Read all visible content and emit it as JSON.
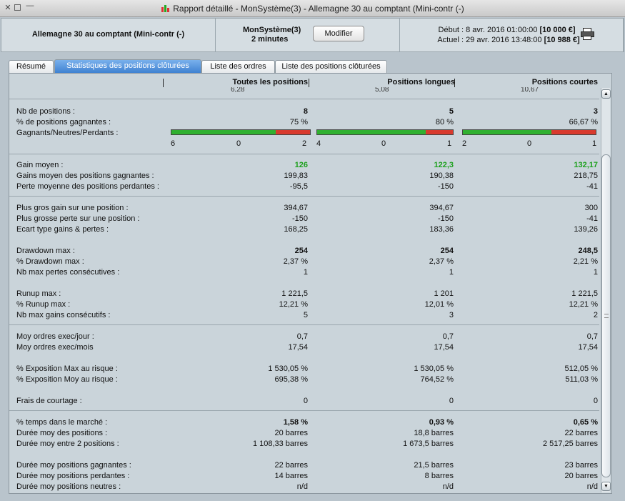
{
  "window": {
    "title": "Rapport détaillé - MonSystème(3) - Allemagne 30 au comptant (Mini-contr (-)",
    "controls": {
      "close": "✕",
      "max": "",
      "min": "—"
    }
  },
  "header": {
    "instrument": "Allemagne 30 au comptant (Mini-contr (-)",
    "system_name": "MonSystème(3)",
    "timeframe": "2 minutes",
    "modify_label": "Modifier",
    "start_label": "Début :",
    "start_date": "8 avr. 2016 01:00:00",
    "start_capital": "[10 000 €]",
    "current_label": "Actuel :",
    "current_date": "29 avr. 2016 13:48:00",
    "current_capital": "[10 988 €]",
    "print_icon": "printer-icon"
  },
  "tabs": [
    {
      "label": "Résumé"
    },
    {
      "label": "Statistiques des positions clôturées"
    },
    {
      "label": "Liste des ordres"
    },
    {
      "label": "Liste des positions clôturées"
    }
  ],
  "columns": {
    "all": "Toutes les positions",
    "long": "Positions longues",
    "short": "Positions courtes",
    "ghost_all": "6,28",
    "ghost_long": "5,08",
    "ghost_short": "10,67"
  },
  "stats": {
    "nb_positions": {
      "label": "Nb de positions :",
      "all": "8",
      "long": "5",
      "short": "3"
    },
    "pct_winning": {
      "label": "% de positions gagnantes :",
      "all": "75 %",
      "long": "80 %",
      "short": "66,67 %"
    },
    "gnp": {
      "label": "Gagnants/Neutres/Perdants :",
      "all": {
        "w": "6",
        "n": "0",
        "l": "2",
        "win_fraction": 0.75
      },
      "long": {
        "w": "4",
        "n": "0",
        "l": "1",
        "win_fraction": 0.8
      },
      "short": {
        "w": "2",
        "n": "0",
        "l": "1",
        "win_fraction": 0.6667
      }
    },
    "avg_gain": {
      "label": "Gain moyen :",
      "all": "126",
      "long": "122,3",
      "short": "132,17"
    },
    "avg_gain_win": {
      "label": "Gains moyen des positions gagnantes :",
      "all": "199,83",
      "long": "190,38",
      "short": "218,75"
    },
    "avg_loss": {
      "label": "Perte moyenne des positions perdantes :",
      "all": "-95,5",
      "long": "-150",
      "short": "-41"
    },
    "max_gain": {
      "label": "Plus gros gain sur une position :",
      "all": "394,67",
      "long": "394,67",
      "short": "300"
    },
    "max_loss": {
      "label": "Plus grosse perte sur une position :",
      "all": "-150",
      "long": "-150",
      "short": "-41"
    },
    "stddev": {
      "label": "Ecart type gains & pertes :",
      "all": "168,25",
      "long": "183,36",
      "short": "139,26"
    },
    "dd_max": {
      "label": "Drawdown max :",
      "all": "254",
      "long": "254",
      "short": "248,5"
    },
    "dd_pct": {
      "label": "% Drawdown max :",
      "all": "2,37 %",
      "long": "2,37 %",
      "short": "2,21 %"
    },
    "max_cons_loss": {
      "label": "Nb max pertes consécutives :",
      "all": "1",
      "long": "1",
      "short": "1"
    },
    "runup_max": {
      "label": "Runup max :",
      "all": "1 221,5",
      "long": "1 201",
      "short": "1 221,5"
    },
    "runup_pct": {
      "label": "% Runup max :",
      "all": "12,21 %",
      "long": "12,01 %",
      "short": "12,21 %"
    },
    "max_cons_gain": {
      "label": "Nb max gains consécutifs :",
      "all": "5",
      "long": "3",
      "short": "2"
    },
    "orders_day": {
      "label": "Moy ordres exec/jour :",
      "all": "0,7",
      "long": "0,7",
      "short": "0,7"
    },
    "orders_month": {
      "label": "Moy ordres exec/mois",
      "all": "17,54",
      "long": "17,54",
      "short": "17,54"
    },
    "exp_max": {
      "label": "% Exposition Max au risque :",
      "all": "1 530,05 %",
      "long": "1 530,05 %",
      "short": "512,05 %"
    },
    "exp_avg": {
      "label": "% Exposition Moy au risque :",
      "all": "695,38 %",
      "long": "764,52 %",
      "short": "511,03 %"
    },
    "fees": {
      "label": "Frais de courtage :",
      "all": "0",
      "long": "0",
      "short": "0"
    },
    "time_market": {
      "label": "% temps dans le marché :",
      "all": "1,58 %",
      "long": "0,93 %",
      "short": "0,65 %"
    },
    "avg_duration": {
      "label": "Durée moy des positions :",
      "all": "20 barres",
      "long": "18,8 barres",
      "short": "22 barres"
    },
    "avg_between": {
      "label": "Durée moy entre 2 positions :",
      "all": "1 108,33 barres",
      "long": "1 673,5 barres",
      "short": "2 517,25 barres"
    },
    "dur_win": {
      "label": "Durée moy positions gagnantes :",
      "all": "22 barres",
      "long": "21,5 barres",
      "short": "23 barres"
    },
    "dur_loss": {
      "label": "Durée moy positions perdantes :",
      "all": "14 barres",
      "long": "8 barres",
      "short": "20 barres"
    },
    "dur_neutral": {
      "label": "Durée moy positions neutres :",
      "all": "n/d",
      "long": "n/d",
      "short": "n/d"
    }
  },
  "colors": {
    "accent_tab": "#3c7fd0",
    "green_value": "#1ca01c",
    "bar_win": "#30b030",
    "bar_loss": "#d83a2e"
  }
}
